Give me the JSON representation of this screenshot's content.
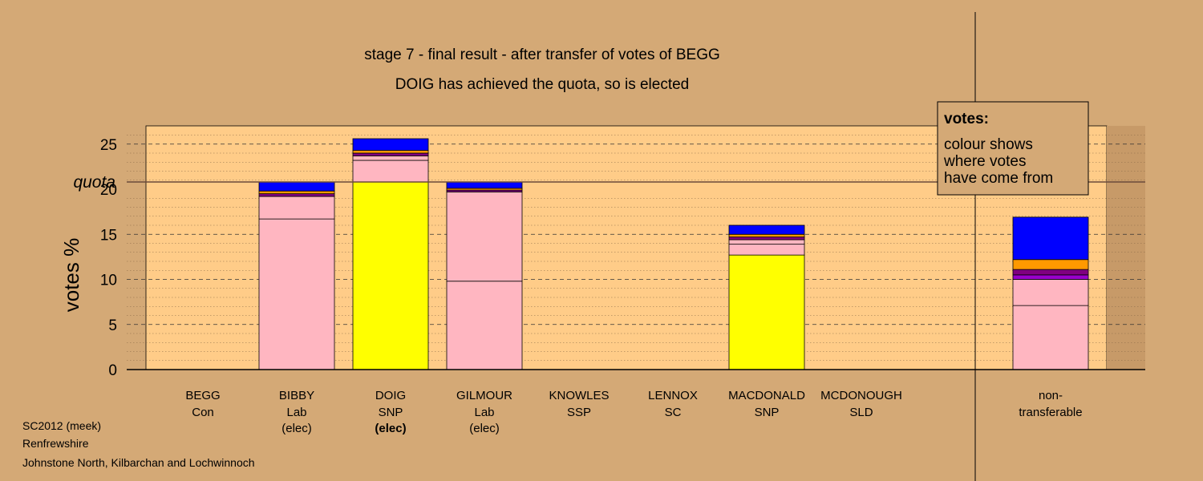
{
  "chart_data": {
    "type": "bar",
    "stacked": true,
    "title": "stage 7 - final result - after transfer of votes of BEGG",
    "subtitle": "DOIG has achieved the quota, so is elected",
    "ylabel": "votes %",
    "ylim": [
      0,
      27
    ],
    "yticks": [
      0,
      5,
      10,
      15,
      20,
      25
    ],
    "grid": true,
    "quota": 20.8,
    "quota_label": "quota",
    "categories": [
      {
        "name": "BEGG",
        "party": "Con",
        "status": ""
      },
      {
        "name": "BIBBY",
        "party": "Lab",
        "status": "(elec)"
      },
      {
        "name": "DOIG",
        "party": "SNP",
        "status": "(elec)",
        "status_bold": true
      },
      {
        "name": "GILMOUR",
        "party": "Lab",
        "status": "(elec)"
      },
      {
        "name": "KNOWLES",
        "party": "SSP",
        "status": ""
      },
      {
        "name": "LENNOX",
        "party": "SC",
        "status": ""
      },
      {
        "name": "MACDONALD",
        "party": "SNP",
        "status": ""
      },
      {
        "name": "MCDONOUGH",
        "party": "SLD",
        "status": ""
      }
    ],
    "nontransferable": {
      "line1": "non-",
      "line2": "transferable"
    },
    "colors": {
      "lab": "#ffb6c1",
      "snp": "#ffff00",
      "con": "#0000ff",
      "sld": "#ff9900",
      "sc": "#800080",
      "ssp": "#9900cc",
      "brown": "#8b4513"
    },
    "stacks": [
      [],
      [
        {
          "value": 16.7,
          "color": "#ffb6c1"
        },
        {
          "value": 2.5,
          "color": "#ffb6c1"
        },
        {
          "value": 0.3,
          "color": "#800080"
        },
        {
          "value": 0.3,
          "color": "#ff9900"
        },
        {
          "value": 1.0,
          "color": "#0000ff"
        }
      ],
      [
        {
          "value": 20.8,
          "color": "#ffff00"
        },
        {
          "value": 2.4,
          "color": "#ffb6c1"
        },
        {
          "value": 0.5,
          "color": "#ffb6c1"
        },
        {
          "value": 0.3,
          "color": "#800080"
        },
        {
          "value": 0.3,
          "color": "#ff9900"
        },
        {
          "value": 1.3,
          "color": "#0000ff"
        }
      ],
      [
        {
          "value": 9.8,
          "color": "#ffb6c1"
        },
        {
          "value": 9.9,
          "color": "#ffb6c1"
        },
        {
          "value": 0.2,
          "color": "#800080"
        },
        {
          "value": 0.2,
          "color": "#ff9900"
        },
        {
          "value": 0.7,
          "color": "#0000ff"
        }
      ],
      [],
      [],
      [
        {
          "value": 12.7,
          "color": "#ffff00"
        },
        {
          "value": 1.2,
          "color": "#ffb6c1"
        },
        {
          "value": 0.5,
          "color": "#ffb6c1"
        },
        {
          "value": 0.3,
          "color": "#800080"
        },
        {
          "value": 0.3,
          "color": "#ff9900"
        },
        {
          "value": 1.0,
          "color": "#0000ff"
        }
      ],
      []
    ],
    "nontransferable_stack": [
      {
        "value": 7.1,
        "color": "#ffb6c1"
      },
      {
        "value": 2.9,
        "color": "#ffb6c1"
      },
      {
        "value": 0.5,
        "color": "#9900cc"
      },
      {
        "value": 0.6,
        "color": "#800080"
      },
      {
        "value": 1.1,
        "color": "#ff9900"
      },
      {
        "value": 4.7,
        "color": "#0000ff"
      }
    ]
  },
  "legend": {
    "title": "votes:",
    "lines": [
      "colour shows",
      "where votes",
      "have come from"
    ]
  },
  "footer": {
    "election": "SC2012 (meek)",
    "council": "Renfrewshire",
    "ward": "Johnstone North, Kilbarchan and Lochwinnoch"
  }
}
